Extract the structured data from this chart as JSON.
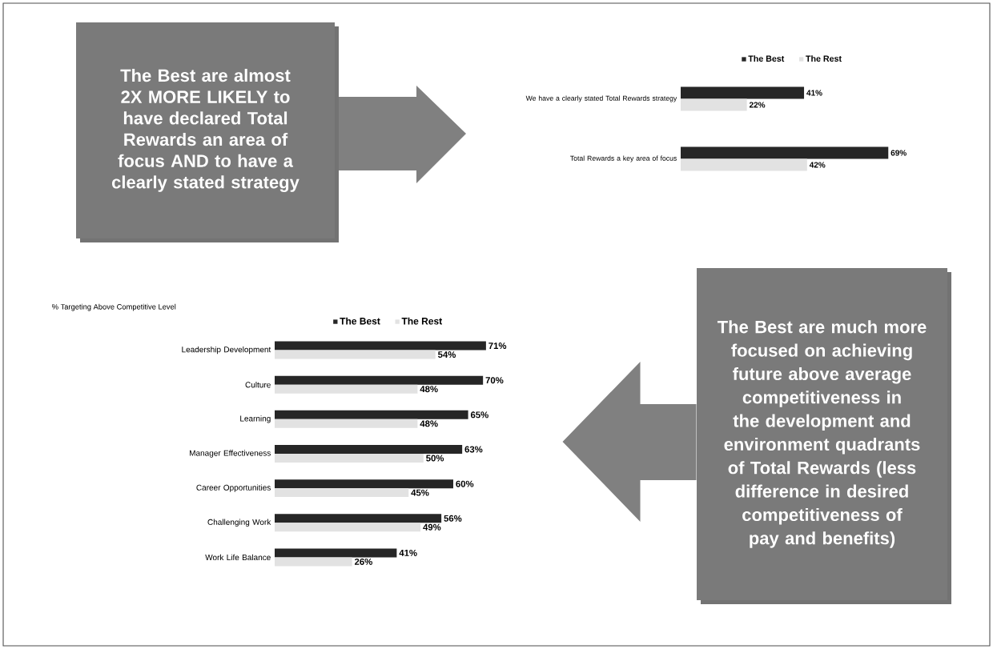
{
  "chart_data": [
    {
      "type": "other",
      "annotations": [
        "The Best are almost 2X MORE LIKELY to have declared Total Rewards an area of focus AND to have a clearly stated strategy"
      ]
    },
    {
      "type": "bar",
      "orientation": "horizontal",
      "legend": "top",
      "categories": [
        "We have a clearly stated Total Rewards strategy",
        "Total Rewards a key area of focus"
      ],
      "series": [
        {
          "name": "The Best",
          "color": "#262626",
          "values": [
            41,
            69
          ],
          "value_labels": [
            "41%",
            "69%"
          ]
        },
        {
          "name": "The Rest",
          "color": "#e2e2e2",
          "values": [
            22,
            42
          ],
          "value_labels": [
            "22%",
            "42%"
          ]
        }
      ]
    },
    {
      "type": "bar",
      "orientation": "horizontal",
      "legend": "top",
      "title": "% Targeting Above Competitive Level",
      "categories": [
        "Leadership Development",
        "Culture",
        "Learning",
        "Manager Effectiveness",
        "Career Opportunities",
        "Challenging Work",
        "Work Life Balance"
      ],
      "series": [
        {
          "name": "The Best",
          "color": "#262626",
          "values": [
            71,
            70,
            65,
            63,
            60,
            56,
            41
          ],
          "value_labels": [
            "71%",
            "70%",
            "65%",
            "63%",
            "60%",
            "56%",
            "41%"
          ]
        },
        {
          "name": "The Rest",
          "color": "#e2e2e2",
          "values": [
            54,
            48,
            48,
            50,
            45,
            49,
            26
          ],
          "value_labels": [
            "54%",
            "48%",
            "48%",
            "50%",
            "45%",
            "49%",
            "26%"
          ]
        }
      ]
    },
    {
      "type": "other",
      "annotations": [
        "The Best are much more focused on achieving future above average competitiveness in the development and environment quadrants of Total Rewards (less difference in desired competitiveness of pay and benefits)"
      ]
    }
  ]
}
